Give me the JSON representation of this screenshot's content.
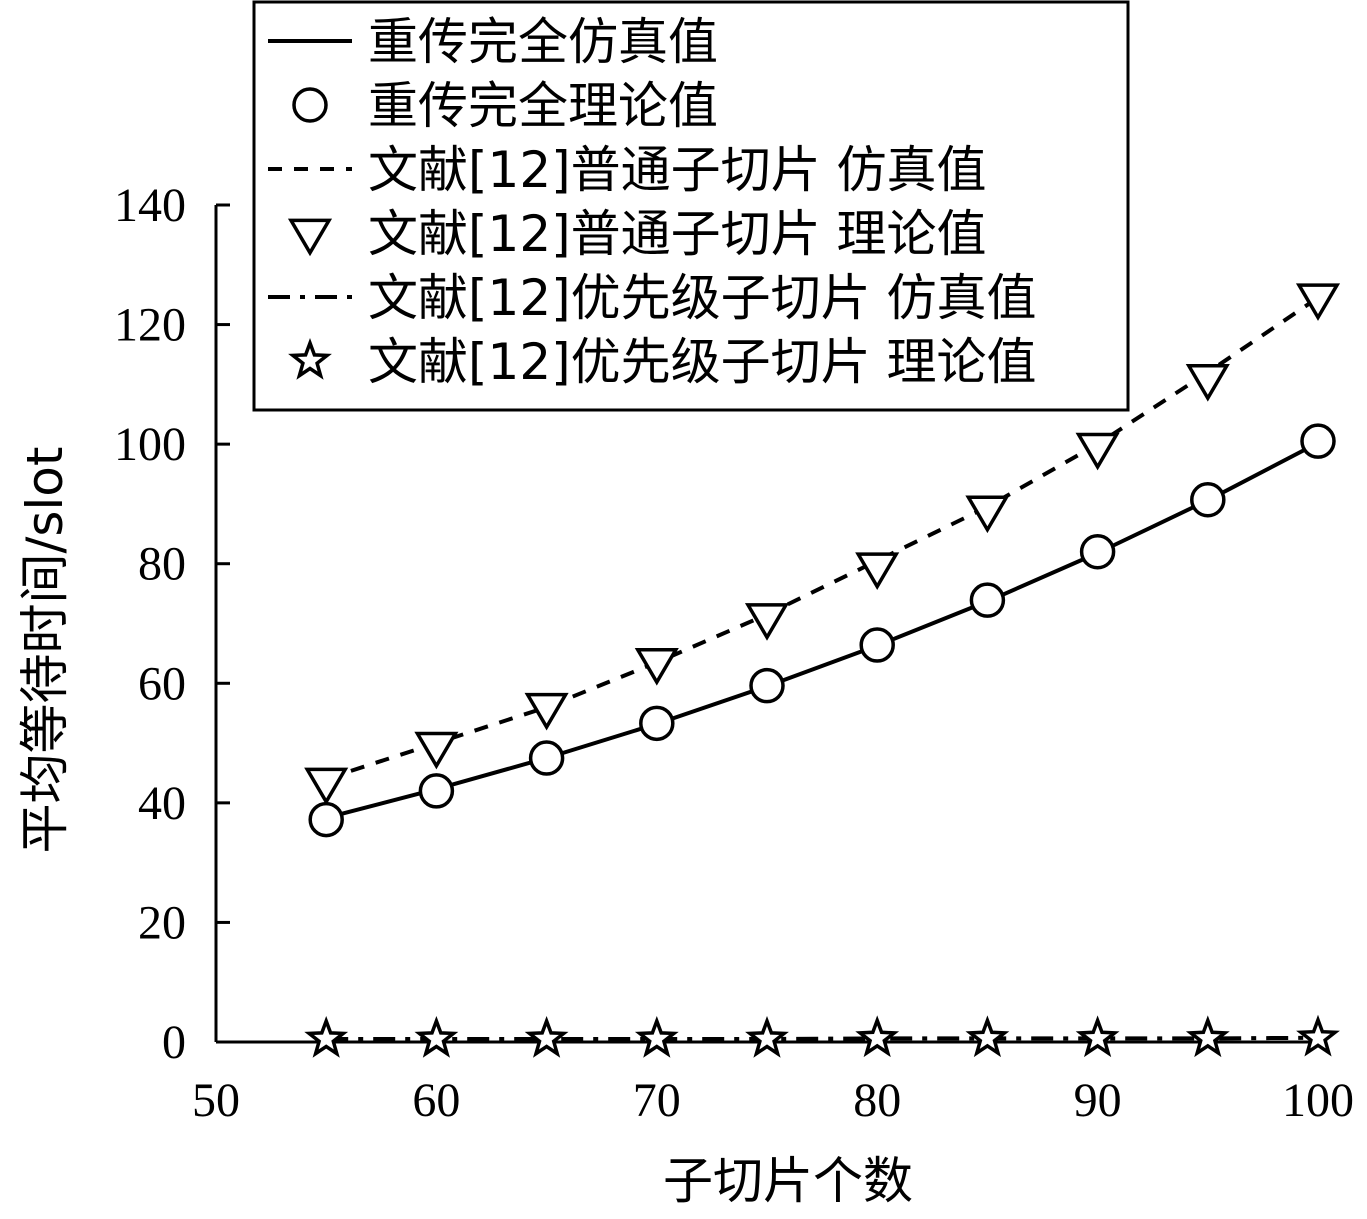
{
  "chart_data": {
    "type": "line",
    "title": "",
    "xlabel": "子切片个数",
    "ylabel": "平均等待时间/slot",
    "xlim": [
      50,
      100
    ],
    "ylim": [
      0,
      140
    ],
    "xticks": [
      50,
      60,
      70,
      80,
      90,
      100
    ],
    "yticks": [
      0,
      20,
      40,
      60,
      80,
      100,
      120,
      140
    ],
    "grid": false,
    "legend_position": "top-right",
    "x": [
      55,
      60,
      65,
      70,
      75,
      80,
      85,
      90,
      95,
      100
    ],
    "series": [
      {
        "name": "重传完全仿真值",
        "style": "solid",
        "marker": "none",
        "values": [
          37.5,
          42.3,
          47.5,
          53.2,
          59.5,
          66.3,
          73.7,
          81.8,
          90.6,
          100.2
        ]
      },
      {
        "name": "重传完全理论值",
        "style": "none",
        "marker": "circle",
        "values": [
          37.2,
          42.0,
          47.5,
          53.3,
          59.6,
          66.4,
          73.9,
          82.0,
          90.7,
          100.5
        ]
      },
      {
        "name": "文献[12]普通子切片 仿真值",
        "style": "dashed",
        "marker": "none",
        "values": [
          44.0,
          50.0,
          56.0,
          63.5,
          71.5,
          80.5,
          89.5,
          100.0,
          112.0,
          124.5
        ]
      },
      {
        "name": "文献[12]普通子切片 理论值",
        "style": "none",
        "marker": "triangle-down",
        "values": [
          43.5,
          49.5,
          56.0,
          63.5,
          71.0,
          79.5,
          89.0,
          99.5,
          111.0,
          124.5
        ]
      },
      {
        "name": "文献[12]优先级子切片 仿真值",
        "style": "dashdot",
        "marker": "none",
        "values": [
          0.5,
          0.5,
          0.5,
          0.5,
          0.5,
          0.6,
          0.6,
          0.6,
          0.6,
          0.7
        ]
      },
      {
        "name": "文献[12]优先级子切片 理论值",
        "style": "none",
        "marker": "star",
        "values": [
          0.5,
          0.5,
          0.5,
          0.5,
          0.5,
          0.6,
          0.6,
          0.6,
          0.6,
          0.7
        ]
      }
    ]
  }
}
